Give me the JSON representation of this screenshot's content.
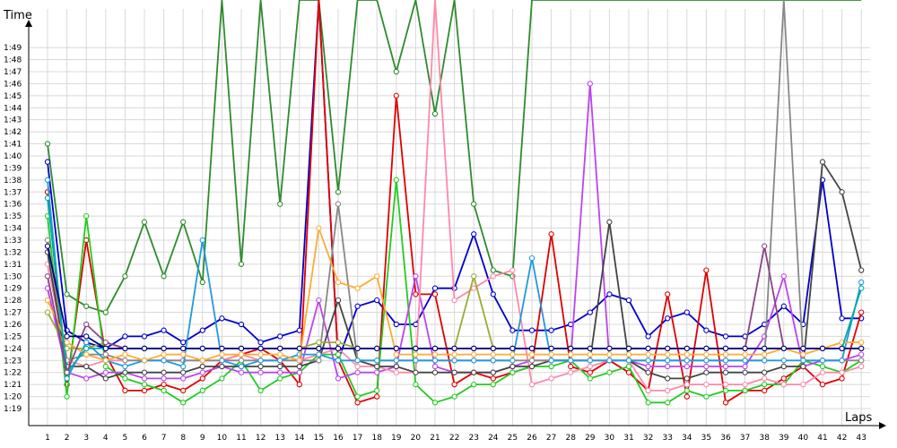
{
  "chart_data": {
    "type": "line",
    "ylabel": "Time",
    "xlabel": "Laps",
    "categories": [
      "1",
      "2",
      "3",
      "4",
      "5",
      "6",
      "7",
      "8",
      "9",
      "10",
      "11",
      "12",
      "13",
      "14",
      "15",
      "16",
      "17",
      "18",
      "19",
      "20",
      "21",
      "22",
      "23",
      "24",
      "25",
      "26",
      "27",
      "28",
      "29",
      "30",
      "31",
      "32",
      "33",
      "34",
      "35",
      "36",
      "37",
      "38",
      "39",
      "40",
      "41",
      "42",
      "43"
    ],
    "y_tick_labels": [
      "1:19",
      "1:20",
      "1:21",
      "1:22",
      "1:23",
      "1:24",
      "1:25",
      "1:26",
      "1:27",
      "1:28",
      "1:29",
      "1:30",
      "1:31",
      "1:32",
      "1:33",
      "1:34",
      "1:35",
      "1:36",
      "1:37",
      "1:38",
      "1:39",
      "1:40",
      "1:41",
      "1:42",
      "1:43",
      "1:44",
      "1:45",
      "1:46",
      "1:47",
      "1:48",
      "1:49"
    ],
    "ylim": [
      78,
      115
    ],
    "grid": true,
    "legend": "none",
    "series": [
      {
        "color": "#2e8b2e",
        "values": [
          101,
          88.5,
          87.5,
          87,
          90,
          94.5,
          90,
          94.5,
          89.5,
          115,
          91,
          115,
          96,
          115,
          115,
          97,
          115,
          115,
          107,
          115,
          103.5,
          115,
          96,
          90.5,
          90,
          115,
          115,
          115,
          115,
          115,
          115,
          115,
          115,
          115,
          115,
          115,
          115,
          115,
          115,
          115,
          115,
          115,
          115
        ]
      },
      {
        "color": "#0000cc",
        "values": [
          99.5,
          85.5,
          84.5,
          84,
          85,
          85,
          85.5,
          84.5,
          85.5,
          86.5,
          86,
          84.5,
          85,
          85.5,
          115,
          83,
          87.5,
          88,
          86,
          86,
          89,
          89,
          93.5,
          88.5,
          85.5,
          85.5,
          85.5,
          86,
          87,
          88.5,
          88,
          85,
          86.5,
          87,
          85.5,
          85,
          85,
          86,
          87.5,
          86,
          98,
          86.5,
          86.5
        ]
      },
      {
        "color": "#e00000",
        "values": [
          97,
          81,
          93,
          83.5,
          80.5,
          80.5,
          81,
          80.5,
          81.5,
          83,
          83.5,
          84,
          83,
          81,
          115,
          83,
          79.5,
          80,
          105,
          88.5,
          88.5,
          81,
          82,
          81.5,
          82,
          82.5,
          93.5,
          82.5,
          82,
          83,
          82,
          80.5,
          88.5,
          80,
          90.5,
          79.5,
          80.5,
          80.5,
          81.5,
          82.5,
          81,
          81.5,
          87
        ]
      },
      {
        "color": "#22cc22",
        "values": [
          95,
          80,
          95,
          82.5,
          81.5,
          81,
          80.5,
          79.5,
          80.5,
          81.5,
          83,
          80.5,
          81.5,
          82,
          83.5,
          83.5,
          80,
          80.5,
          98,
          81,
          79.5,
          80,
          81,
          81,
          82,
          82.5,
          82.5,
          83,
          81.5,
          82,
          82.5,
          79.5,
          79.5,
          80.5,
          80,
          80.5,
          80.5,
          81,
          81,
          83,
          82.5,
          82,
          83
        ]
      },
      {
        "color": "#bb44ee",
        "values": [
          89,
          82,
          81.5,
          82,
          82,
          81.5,
          81.5,
          81.5,
          82,
          82.5,
          82,
          82,
          82,
          82,
          88,
          81.5,
          82,
          82,
          82.5,
          90,
          82.5,
          82,
          82,
          82,
          82.5,
          83,
          83,
          83,
          106,
          83,
          83,
          82.5,
          82.5,
          82.5,
          82.5,
          82.5,
          82.5,
          85,
          90,
          82.5,
          83,
          83,
          83.5
        ]
      },
      {
        "color": "#ff88aa",
        "values": [
          91,
          83,
          82.5,
          83,
          83,
          83,
          83,
          83,
          83,
          83,
          83.5,
          83,
          83,
          83,
          83.5,
          84,
          82.5,
          82.5,
          82,
          82,
          115,
          88,
          89,
          90,
          90.5,
          81,
          81.5,
          82,
          82.5,
          83,
          83,
          80.5,
          80.5,
          81,
          81,
          81,
          81,
          81.5,
          81,
          81,
          82,
          82,
          82.5
        ]
      },
      {
        "color": "#444444",
        "values": [
          92,
          82.5,
          82.5,
          81.5,
          82,
          82,
          82,
          82,
          82.5,
          82.5,
          82.5,
          82.5,
          82.5,
          82.5,
          83,
          88,
          83,
          82.5,
          82.5,
          82,
          82,
          82,
          82,
          82,
          82.5,
          82.5,
          83,
          83,
          83,
          94.5,
          83,
          82,
          81.5,
          81.5,
          82,
          82,
          82,
          82,
          82.5,
          82.5,
          99.5,
          97,
          90.5
        ]
      },
      {
        "color": "#888888",
        "values": [
          93,
          83,
          83.5,
          83.5,
          83,
          83,
          83,
          83,
          83,
          83,
          83,
          83,
          83,
          83,
          83,
          96,
          83,
          83,
          83,
          83,
          83,
          83,
          83,
          83,
          83,
          83,
          83,
          83,
          83,
          83,
          83,
          83,
          83,
          83,
          83,
          83,
          83,
          83,
          115,
          83,
          83,
          83,
          83
        ]
      },
      {
        "color": "#2299dd",
        "values": [
          98,
          81.5,
          84.5,
          83,
          82.5,
          83,
          83,
          82.5,
          93,
          83,
          82.5,
          83,
          83,
          83.5,
          83.5,
          83,
          83,
          83,
          83,
          83,
          83,
          83,
          83,
          83,
          83,
          91.5,
          83,
          83,
          83,
          83,
          83,
          83,
          83,
          83,
          83,
          83,
          83,
          83,
          83,
          83,
          83,
          83,
          89.5
        ]
      },
      {
        "color": "#ffaa33",
        "values": [
          88,
          84.5,
          83.5,
          83,
          83.5,
          83,
          83.5,
          83.5,
          83,
          83.5,
          83.5,
          83.5,
          83.5,
          83,
          94,
          89.5,
          89,
          90,
          83.5,
          83.5,
          83.5,
          83.5,
          83.5,
          83.5,
          83.5,
          83.5,
          83.5,
          83.5,
          83.5,
          83.5,
          83.5,
          83.5,
          83.5,
          83.5,
          83.5,
          83.5,
          83.5,
          83.5,
          84,
          83.5,
          84,
          84.5,
          84.5
        ]
      },
      {
        "color": "#99aa33",
        "values": [
          87,
          84,
          84,
          84.5,
          84,
          84,
          84,
          84,
          84,
          84,
          84,
          84,
          84,
          84,
          84.5,
          84.5,
          84,
          84,
          84,
          84,
          84,
          84,
          90,
          84,
          84,
          84,
          84,
          84,
          84,
          84,
          84,
          84,
          84,
          84,
          84,
          84,
          84,
          84,
          84,
          84,
          84,
          84,
          84
        ]
      },
      {
        "color": "#00aaaa",
        "values": [
          96.5,
          82,
          84,
          84,
          84,
          84,
          84,
          84,
          84,
          84,
          84,
          84,
          84,
          84,
          84,
          84,
          84,
          84,
          84,
          84,
          84,
          84,
          84,
          84,
          84,
          84,
          84,
          84,
          84,
          84,
          84,
          84,
          84,
          84,
          84,
          84,
          84,
          84,
          84,
          84,
          84,
          84,
          89
        ]
      },
      {
        "color": "#884488",
        "values": [
          90,
          82,
          86,
          84.5,
          84,
          84,
          84,
          84,
          84,
          84,
          84,
          84,
          84,
          84,
          84,
          84,
          84,
          84,
          84,
          84,
          84,
          84,
          84,
          84,
          84,
          84,
          84,
          84,
          84,
          84,
          84,
          84,
          84,
          84,
          84,
          84,
          84,
          92.5,
          84,
          84,
          84,
          84,
          84
        ]
      },
      {
        "color": "#000088",
        "values": [
          92.5,
          85,
          85,
          84,
          84,
          84,
          84,
          84,
          84,
          84,
          84,
          84,
          84,
          84,
          84,
          84,
          84,
          84,
          84,
          84,
          84,
          84,
          84,
          84,
          84,
          84,
          84,
          84,
          84,
          84,
          84,
          84,
          84,
          84,
          84,
          84,
          84,
          84,
          84,
          84,
          84,
          84,
          84
        ]
      }
    ]
  }
}
